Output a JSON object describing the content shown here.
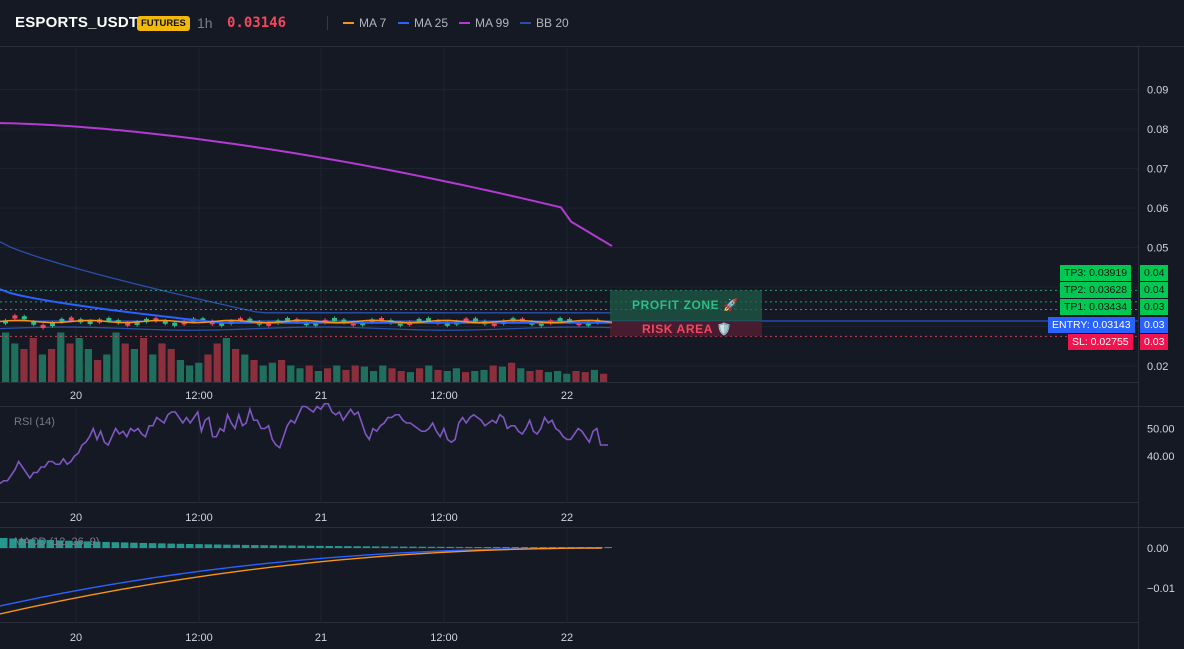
{
  "header": {
    "symbol": "ESPORTS_USDT",
    "badge": "FUTURES",
    "timeframe": "1h",
    "last_price": "0.03146",
    "indicators": [
      {
        "label": "MA 7",
        "color": "#f7931a"
      },
      {
        "label": "MA 25",
        "color": "#2962ff"
      },
      {
        "label": "MA 99",
        "color": "#b23bd1"
      },
      {
        "label": "BB 20",
        "color": "#2a4fa8"
      }
    ]
  },
  "price_axis": {
    "ticks": [
      "0.09",
      "0.08",
      "0.07",
      "0.06",
      "0.05",
      "0.04",
      "0.03",
      "0.02"
    ],
    "values": [
      0.09,
      0.08,
      0.07,
      0.06,
      0.05,
      0.04,
      0.03,
      0.02
    ]
  },
  "time_axis": {
    "labels": [
      "20",
      "12:00",
      "21",
      "12:00",
      "22"
    ]
  },
  "levels": {
    "tp3": {
      "label": "TP3: 0.03919",
      "axis": "0.04",
      "value": 0.03919
    },
    "tp2": {
      "label": "TP2: 0.03628",
      "axis": "0.04",
      "value": 0.03628
    },
    "tp1": {
      "label": "TP1: 0.03434",
      "axis": "0.03",
      "value": 0.03434
    },
    "entry": {
      "label": "ENTRY: 0.03143",
      "axis": "0.03",
      "value": 0.03143
    },
    "sl": {
      "label": "SL: 0.02755",
      "axis": "0.03",
      "value": 0.02755
    }
  },
  "zones": {
    "profit_label": "PROFIT ZONE 🚀",
    "risk_label": "RISK AREA 🛡️"
  },
  "rsi": {
    "label": "RSI (14)",
    "ticks": [
      "50.00",
      "40.00"
    ],
    "tick_values": [
      50,
      40
    ]
  },
  "macd": {
    "label": "MACD (12, 26, 9)",
    "ticks": [
      "0.00",
      "−0.01"
    ],
    "tick_values": [
      0,
      -0.01
    ]
  },
  "chart_data": {
    "type": "candlestick",
    "title": "ESPORTS_USDT 1h",
    "price_ylim": [
      0.0165,
      0.0985
    ],
    "rsi_values": [
      30,
      31,
      31,
      33,
      35,
      38,
      36,
      34,
      32,
      34,
      34,
      36,
      36,
      38,
      38,
      37,
      37,
      39,
      37,
      38,
      40,
      41,
      44,
      45,
      47,
      50,
      46,
      49,
      45,
      44,
      47,
      50,
      48,
      49,
      47,
      50,
      49,
      50,
      48,
      47,
      51,
      51,
      54,
      53,
      52,
      55,
      56,
      56,
      54,
      52,
      54,
      52,
      54,
      56,
      49,
      53,
      54,
      47,
      47,
      50,
      49,
      55,
      52,
      50,
      55,
      51,
      52,
      57,
      53,
      53,
      50,
      50,
      51,
      46,
      44,
      43,
      47,
      51,
      53,
      52,
      55,
      58,
      58,
      57,
      56,
      58,
      57,
      59,
      59,
      56,
      55,
      56,
      53,
      55,
      57,
      55,
      56,
      52,
      48,
      46,
      50,
      49,
      51,
      52,
      54,
      54,
      55,
      55,
      53,
      52,
      52,
      51,
      50,
      49,
      49,
      50,
      52,
      49,
      47,
      50,
      46,
      45,
      46,
      52,
      54,
      52,
      54,
      55,
      54,
      53,
      51,
      52,
      53,
      52,
      55,
      54,
      50,
      51,
      51,
      49,
      48,
      50,
      53,
      49,
      48,
      50,
      54,
      52,
      53,
      50,
      49,
      47,
      46,
      46,
      48,
      50,
      49,
      47,
      45,
      49,
      50,
      44,
      44,
      44
    ],
    "volume": [
      0.9,
      0.7,
      0.6,
      0.8,
      0.5,
      0.6,
      0.9,
      0.7,
      0.8,
      0.6,
      0.4,
      0.5,
      0.9,
      0.7,
      0.6,
      0.8,
      0.5,
      0.7,
      0.6,
      0.4,
      0.3,
      0.35,
      0.5,
      0.7,
      0.8,
      0.6,
      0.5,
      0.4,
      0.3,
      0.35,
      0.4,
      0.3,
      0.25,
      0.3,
      0.2,
      0.25,
      0.3,
      0.22,
      0.3,
      0.28,
      0.2,
      0.3,
      0.25,
      0.2,
      0.18,
      0.25,
      0.3,
      0.22,
      0.2,
      0.25,
      0.18,
      0.2,
      0.22,
      0.3,
      0.28,
      0.35,
      0.25,
      0.2,
      0.22,
      0.18,
      0.2,
      0.15,
      0.2,
      0.18,
      0.22,
      0.15
    ]
  }
}
